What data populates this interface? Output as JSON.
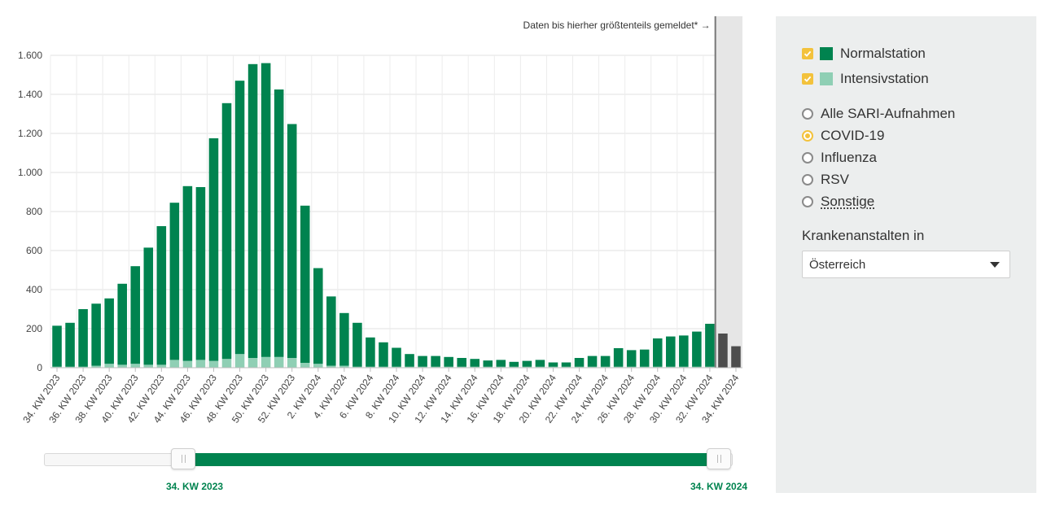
{
  "chart_data": {
    "type": "bar",
    "stacked": true,
    "categories": [
      "34. KW 2023",
      "35. KW 2023",
      "36. KW 2023",
      "37. KW 2023",
      "38. KW 2023",
      "39. KW 2023",
      "40. KW 2023",
      "41. KW 2023",
      "42. KW 2023",
      "43. KW 2023",
      "44. KW 2023",
      "45. KW 2023",
      "46. KW 2023",
      "47. KW 2023",
      "48. KW 2023",
      "49. KW 2023",
      "50. KW 2023",
      "51. KW 2023",
      "52. KW 2023",
      "1. KW 2024",
      "2. KW 2024",
      "3. KW 2024",
      "4. KW 2024",
      "5. KW 2024",
      "6. KW 2024",
      "7. KW 2024",
      "8. KW 2024",
      "9. KW 2024",
      "10. KW 2024",
      "11. KW 2024",
      "12. KW 2024",
      "13. KW 2024",
      "14. KW 2024",
      "15. KW 2024",
      "16. KW 2024",
      "17. KW 2024",
      "18. KW 2024",
      "19. KW 2024",
      "20. KW 2024",
      "21. KW 2024",
      "22. KW 2024",
      "23. KW 2024",
      "24. KW 2024",
      "25. KW 2024",
      "26. KW 2024",
      "27. KW 2024",
      "28. KW 2024",
      "29. KW 2024",
      "30. KW 2024",
      "31. KW 2024",
      "32. KW 2024",
      "33. KW 2024",
      "34. KW 2024"
    ],
    "tick_labels": [
      "34. KW 2023",
      "36. KW 2023",
      "38. KW 2023",
      "40. KW 2023",
      "42. KW 2023",
      "44. KW 2023",
      "46. KW 2023",
      "48. KW 2023",
      "50. KW 2023",
      "52. KW 2023",
      "2. KW 2024",
      "4. KW 2024",
      "6. KW 2024",
      "8. KW 2024",
      "10. KW 2024",
      "12. KW 2024",
      "14. KW 2024",
      "16. KW 2024",
      "18. KW 2024",
      "20. KW 2024",
      "22. KW 2024",
      "24. KW 2024",
      "26. KW 2024",
      "28. KW 2024",
      "30. KW 2024",
      "32. KW 2024",
      "34. KW 2024"
    ],
    "series": [
      {
        "name": "Intensivstation",
        "color": "#8fcfb4",
        "values": [
          5,
          5,
          5,
          10,
          20,
          15,
          20,
          15,
          15,
          40,
          35,
          40,
          35,
          45,
          70,
          50,
          55,
          55,
          50,
          25,
          20,
          10,
          10,
          5,
          5,
          5,
          5,
          5,
          5,
          5,
          5,
          5,
          5,
          5,
          5,
          5,
          5,
          5,
          5,
          5,
          5,
          5,
          5,
          5,
          5,
          5,
          5,
          5,
          5,
          5,
          5,
          5,
          5
        ]
      },
      {
        "name": "Normalstation",
        "color": "#00834f",
        "values": [
          210,
          225,
          295,
          318,
          335,
          415,
          500,
          600,
          710,
          805,
          895,
          885,
          1140,
          1310,
          1400,
          1505,
          1505,
          1370,
          1198,
          805,
          490,
          355,
          270,
          225,
          150,
          125,
          97,
          65,
          55,
          55,
          50,
          45,
          40,
          32,
          35,
          25,
          30,
          35,
          22,
          22,
          45,
          55,
          55,
          95,
          85,
          88,
          145,
          155,
          160,
          180,
          220,
          170,
          105
        ]
      }
    ],
    "preliminary_from_index": 51,
    "preliminary_color": "#4d4d4d",
    "yticks": [
      0,
      200,
      400,
      600,
      800,
      1000,
      1200,
      1400,
      1600
    ],
    "ytick_labels": [
      "0",
      "200",
      "400",
      "600",
      "800",
      "1.000",
      "1.200",
      "1.400",
      "1.600"
    ],
    "ylim": [
      0,
      1640
    ],
    "annotation": "Daten bis hierher größtenteils gemeldet* →",
    "grid": true,
    "legend": "right-panel"
  },
  "slider": {
    "start_label": "34. KW 2023",
    "end_label": "34. KW 2024",
    "start_fraction": 0.22,
    "end_fraction": 0.98
  },
  "panel": {
    "checkboxes": [
      {
        "label": "Normalstation",
        "checked": true,
        "color": "#00834f"
      },
      {
        "label": "Intensivstation",
        "checked": true,
        "color": "#8fcfb4"
      }
    ],
    "radios": [
      {
        "label": "Alle SARI-Aufnahmen",
        "selected": false
      },
      {
        "label": "COVID-19",
        "selected": true
      },
      {
        "label": "Influenza",
        "selected": false
      },
      {
        "label": "RSV",
        "selected": false
      },
      {
        "label": "Sonstige",
        "selected": false
      }
    ],
    "dropdown_label": "Krankenanstalten in",
    "dropdown_value": "Österreich"
  }
}
